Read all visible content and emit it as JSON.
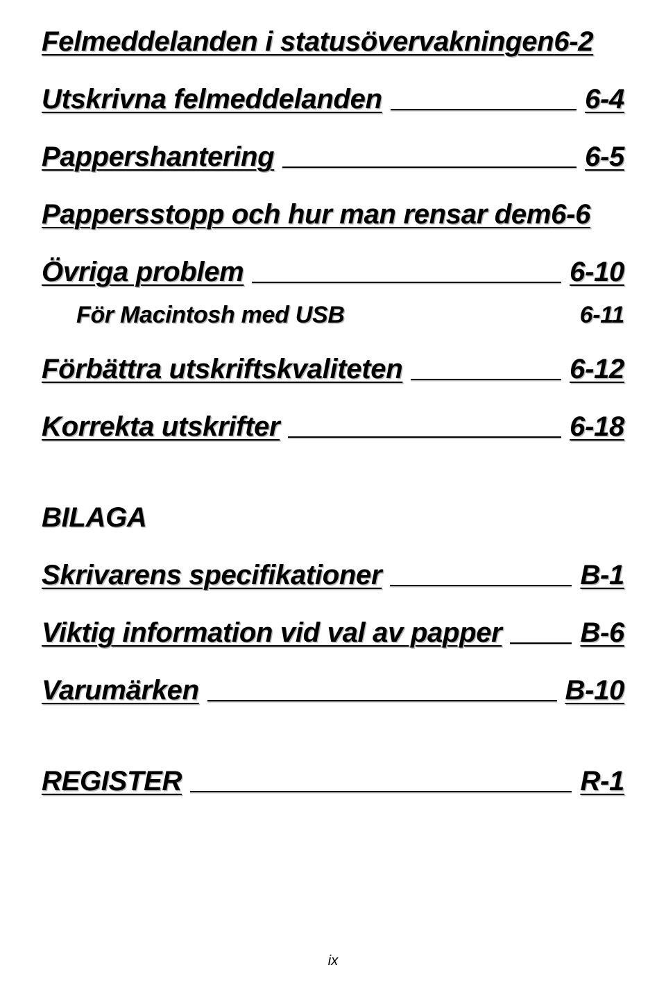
{
  "toc": {
    "row1_title": "Felmeddelanden i statusövervakningen",
    "row1_page": "6-2",
    "row2_title": "Utskrivna felmeddelanden",
    "row2_page": "6-4",
    "row3_title": "Pappershantering",
    "row3_page": "6-5",
    "row4_title": "Pappersstopp och hur man rensar dem",
    "row4_page": "6-6",
    "row5_title": "Övriga problem",
    "row5_page": "6-10",
    "row5a_title": "För Macintosh med USB",
    "row5a_page": "6-11",
    "row6_title": "Förbättra utskriftskvaliteten",
    "row6_page": "6-12",
    "row7_title": "Korrekta utskrifter",
    "row7_page": "6-18",
    "bilaga_heading": "BILAGA",
    "row8_title": "Skrivarens specifikationer",
    "row8_page": "B-1",
    "row9_title": "Viktig information vid val av papper",
    "row9_page": "B-6",
    "row10_title": "Varumärken",
    "row10_page": "B-10",
    "row11_title": "REGISTER",
    "row11_page": "R-1"
  },
  "footer": {
    "page_label": "ix"
  }
}
